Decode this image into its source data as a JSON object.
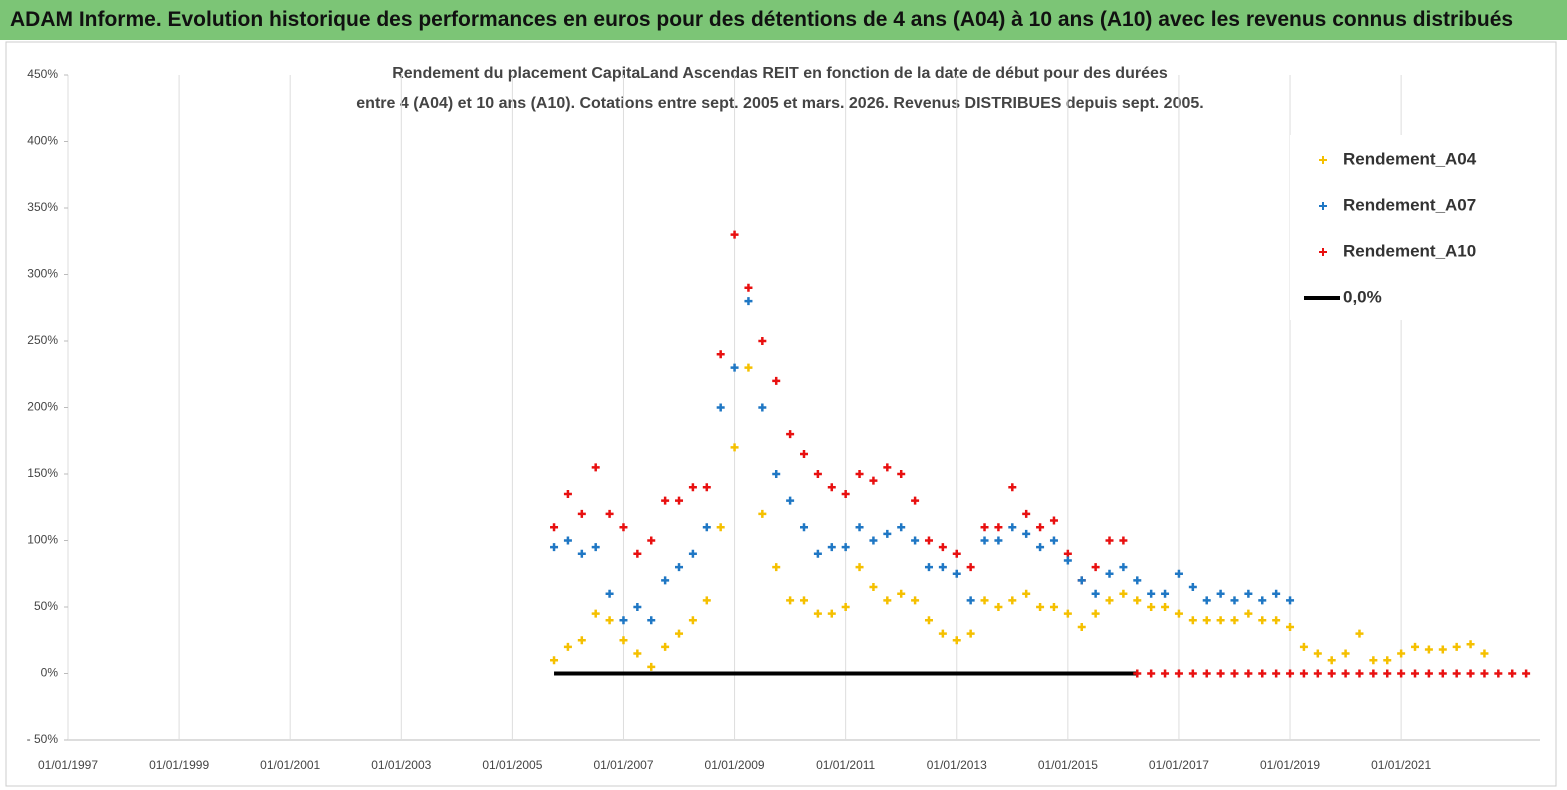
{
  "header": "ADAM Informe. Evolution historique des performances en euros pour des détentions de 4 ans (A04) à 10 ans (A10) avec les revenus connus distribués",
  "chart_data": {
    "type": "scatter",
    "title": [
      "Rendement du placement CapitaLand Ascendas REIT en fonction de la date de début pour des durées",
      "entre 4 (A04) et 10 ans (A10). Cotations entre sept. 2005 et mars. 2026. Revenus DISTRIBUES depuis sept. 2005."
    ],
    "x": [
      "01/10/2005",
      "01/01/2006",
      "01/04/2006",
      "01/07/2006",
      "01/10/2006",
      "01/01/2007",
      "01/04/2007",
      "01/07/2007",
      "01/10/2007",
      "01/01/2008",
      "01/04/2008",
      "01/07/2008",
      "01/10/2008",
      "01/01/2009",
      "01/04/2009",
      "01/07/2009",
      "01/10/2009",
      "01/01/2010",
      "01/04/2010",
      "01/07/2010",
      "01/10/2010",
      "01/01/2011",
      "01/04/2011",
      "01/07/2011",
      "01/10/2011",
      "01/01/2012",
      "01/04/2012",
      "01/07/2012",
      "01/10/2012",
      "01/01/2013",
      "01/04/2013",
      "01/07/2013",
      "01/10/2013",
      "01/01/2014",
      "01/04/2014",
      "01/07/2014",
      "01/10/2014",
      "01/01/2015",
      "01/04/2015",
      "01/07/2015",
      "01/10/2015",
      "01/01/2016",
      "01/04/2016",
      "01/07/2016",
      "01/10/2016",
      "01/01/2017",
      "01/04/2017",
      "01/07/2017",
      "01/10/2017",
      "01/01/2018",
      "01/04/2018",
      "01/07/2018",
      "01/10/2018",
      "01/01/2019",
      "01/04/2019",
      "01/07/2019",
      "01/10/2019",
      "01/01/2020",
      "01/04/2020",
      "01/07/2020",
      "01/10/2020",
      "01/01/2021",
      "01/04/2021",
      "01/07/2021",
      "01/10/2021",
      "01/01/2022",
      "01/04/2022",
      "01/07/2022",
      "01/10/2022",
      "01/01/2023",
      "01/04/2023"
    ],
    "series": [
      {
        "name": "Rendement_A04",
        "color": "#f5c000",
        "marker": "plus",
        "values": [
          10,
          20,
          25,
          45,
          40,
          25,
          15,
          5,
          20,
          30,
          40,
          55,
          110,
          170,
          230,
          120,
          80,
          55,
          55,
          45,
          45,
          50,
          80,
          65,
          55,
          60,
          55,
          40,
          30,
          25,
          30,
          55,
          50,
          55,
          60,
          50,
          50,
          45,
          35,
          45,
          55,
          60,
          55,
          50,
          50,
          45,
          40,
          40,
          40,
          40,
          45,
          40,
          40,
          35,
          20,
          15,
          10,
          15,
          30,
          10,
          10,
          15,
          20,
          18,
          18,
          20,
          22,
          15,
          null,
          null,
          null
        ]
      },
      {
        "name": "Rendement_A07",
        "color": "#1f77c4",
        "marker": "plus",
        "values": [
          95,
          100,
          90,
          95,
          60,
          40,
          50,
          40,
          70,
          80,
          90,
          110,
          200,
          230,
          280,
          200,
          150,
          130,
          110,
          90,
          95,
          95,
          110,
          100,
          105,
          110,
          100,
          80,
          80,
          75,
          55,
          100,
          100,
          110,
          105,
          95,
          100,
          85,
          70,
          60,
          75,
          80,
          70,
          60,
          60,
          75,
          65,
          55,
          60,
          55,
          60,
          55,
          60,
          55,
          null,
          null,
          null,
          null,
          null,
          null,
          null,
          null,
          null,
          null,
          null,
          null,
          null,
          null,
          null,
          null,
          null
        ]
      },
      {
        "name": "Rendement_A10",
        "color": "#e81010",
        "marker": "plus",
        "values": [
          110,
          135,
          120,
          155,
          120,
          110,
          90,
          100,
          130,
          130,
          140,
          140,
          240,
          330,
          290,
          250,
          220,
          180,
          165,
          150,
          140,
          135,
          150,
          145,
          155,
          150,
          130,
          100,
          95,
          90,
          80,
          110,
          110,
          140,
          120,
          110,
          115,
          90,
          70,
          80,
          100,
          100,
          0,
          0,
          0,
          0,
          0,
          0,
          0,
          0,
          0,
          0,
          0,
          0,
          0,
          0,
          0,
          0,
          0,
          0,
          0,
          0,
          0,
          0,
          0,
          0,
          0,
          0,
          0,
          0,
          0
        ]
      },
      {
        "name": "0,0%",
        "color": "#000000",
        "marker": "line",
        "values": [
          0,
          0,
          0,
          0,
          0,
          0,
          0,
          0,
          0,
          0,
          0,
          0,
          0,
          0,
          0,
          0,
          0,
          0,
          0,
          0,
          0,
          0,
          0,
          0,
          0,
          0,
          0,
          0,
          0,
          0,
          0,
          0,
          0,
          0,
          0,
          0,
          0,
          0,
          0,
          0,
          0,
          0,
          0,
          null,
          null,
          null,
          null,
          null,
          null,
          null,
          null,
          null,
          null,
          null,
          null,
          null,
          null,
          null,
          null,
          null,
          null,
          null,
          null,
          null,
          null,
          null,
          null,
          null,
          null,
          null,
          null
        ]
      }
    ],
    "xlim": [
      "01/01/1997",
      "01/07/2023"
    ],
    "xticks": [
      "01/01/1997",
      "01/01/1999",
      "01/01/2001",
      "01/01/2003",
      "01/01/2005",
      "01/01/2007",
      "01/01/2009",
      "01/01/2011",
      "01/01/2013",
      "01/01/2015",
      "01/01/2017",
      "01/01/2019",
      "01/01/2021"
    ],
    "ylim": [
      -50,
      450
    ],
    "yticks": [
      {
        "value": -50,
        "label": "- 50%"
      },
      {
        "value": 0,
        "label": "0%"
      },
      {
        "value": 50,
        "label": "50%"
      },
      {
        "value": 100,
        "label": "100%"
      },
      {
        "value": 150,
        "label": "150%"
      },
      {
        "value": 200,
        "label": "200%"
      },
      {
        "value": 250,
        "label": "250%"
      },
      {
        "value": 300,
        "label": "300%"
      },
      {
        "value": 350,
        "label": "350%"
      },
      {
        "value": 400,
        "label": "400%"
      },
      {
        "value": 450,
        "label": "450%"
      }
    ],
    "grid": "x",
    "legend": "top-right"
  }
}
